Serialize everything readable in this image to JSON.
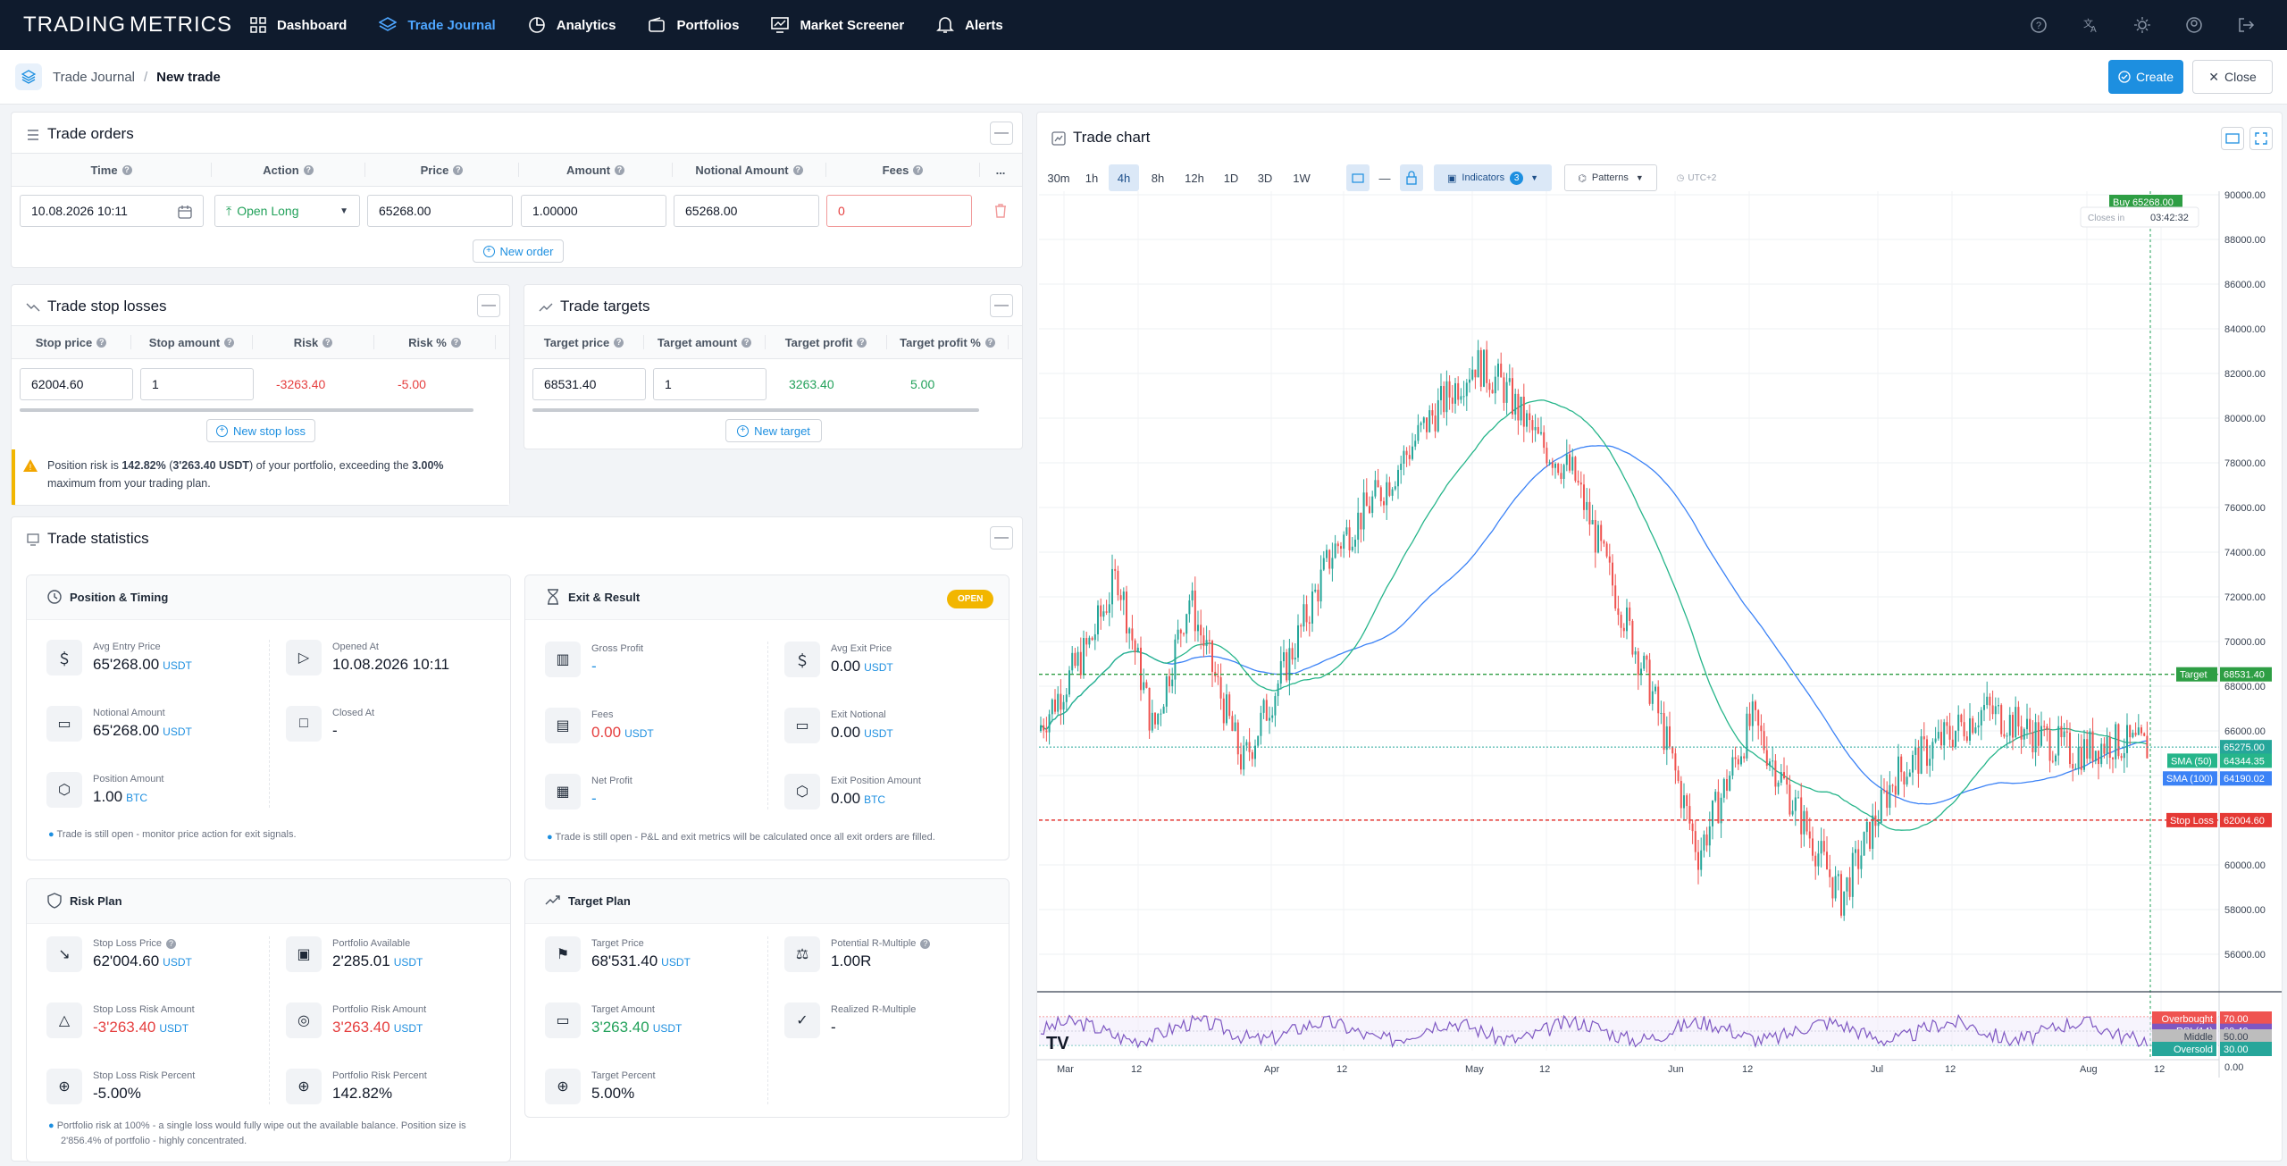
{
  "brand": {
    "name_left": "TRADING",
    "name_right": "METRICS"
  },
  "nav": {
    "items": [
      {
        "label": "Dashboard",
        "icon": "grid-icon"
      },
      {
        "label": "Trade Journal",
        "icon": "layers-icon",
        "active": true
      },
      {
        "label": "Analytics",
        "icon": "pie-icon"
      },
      {
        "label": "Portfolios",
        "icon": "wallet-icon"
      },
      {
        "label": "Market Screener",
        "icon": "screener-icon"
      },
      {
        "label": "Alerts",
        "icon": "bell-icon"
      }
    ],
    "right_icons": [
      "help-icon",
      "translate-icon",
      "theme-icon",
      "account-icon",
      "logout-icon"
    ]
  },
  "breadcrumb": {
    "parent": "Trade Journal",
    "current": "New trade",
    "separator": "/"
  },
  "actions": {
    "create": "Create",
    "close": "Close"
  },
  "orders": {
    "title": "Trade orders",
    "columns": [
      "Time",
      "Action",
      "Price",
      "Amount",
      "Notional Amount",
      "Fees"
    ],
    "row": {
      "time": "10.08.2026 10:11",
      "action": "Open Long",
      "price": "65268.00",
      "amount": "1.00000",
      "notional": "65268.00",
      "fees": "0"
    },
    "more": "...",
    "add": "New order"
  },
  "stops": {
    "title": "Trade stop losses",
    "columns": [
      "Stop price",
      "Stop amount",
      "Risk",
      "Risk %"
    ],
    "row": {
      "price": "62004.60",
      "amount": "1",
      "risk": "-3263.40",
      "risk_pct": "-5.00"
    },
    "add": "New stop loss"
  },
  "targets": {
    "title": "Trade targets",
    "columns": [
      "Target price",
      "Target amount",
      "Target profit",
      "Target profit %"
    ],
    "row": {
      "price": "68531.40",
      "amount": "1",
      "profit": "3263.40",
      "profit_pct": "5.00"
    },
    "add": "New target"
  },
  "warning": {
    "prefix": "Position risk is ",
    "pct": "142.82%",
    "mid": " (",
    "amt": "3'263.40 USDT",
    "mid2": ") of your portfolio, exceeding the ",
    "max": "3.00%",
    "line2": "maximum from your trading plan."
  },
  "stats": {
    "title": "Trade statistics",
    "position": {
      "title": "Position & Timing",
      "avg_entry": {
        "label": "Avg Entry Price",
        "value": "65'268.00",
        "unit": "USDT"
      },
      "opened": {
        "label": "Opened At",
        "value": "10.08.2026 10:11"
      },
      "notional": {
        "label": "Notional Amount",
        "value": "65'268.00",
        "unit": "USDT"
      },
      "closed": {
        "label": "Closed At",
        "value": "-"
      },
      "amount": {
        "label": "Position Amount",
        "value": "1.00",
        "unit": "BTC"
      },
      "note": "Trade is still open - monitor price action for exit signals."
    },
    "exit": {
      "title": "Exit & Result",
      "badge": "OPEN",
      "gross": {
        "label": "Gross Profit",
        "value": "-"
      },
      "avg_exit": {
        "label": "Avg Exit Price",
        "value": "0.00",
        "unit": "USDT"
      },
      "fees": {
        "label": "Fees",
        "value": "0.00",
        "unit": "USDT"
      },
      "exit_notional": {
        "label": "Exit Notional",
        "value": "0.00",
        "unit": "USDT"
      },
      "net": {
        "label": "Net Profit",
        "value": "-"
      },
      "exit_amount": {
        "label": "Exit Position Amount",
        "value": "0.00",
        "unit": "BTC"
      },
      "note": "Trade is still open - P&L and exit metrics will be calculated once all exit orders are filled."
    },
    "risk": {
      "title": "Risk Plan",
      "sl_price": {
        "label": "Stop Loss Price",
        "value": "62'004.60",
        "unit": "USDT"
      },
      "port_avail": {
        "label": "Portfolio Available",
        "value": "2'285.01",
        "unit": "USDT"
      },
      "sl_amount": {
        "label": "Stop Loss Risk Amount",
        "value": "-3'263.40",
        "unit": "USDT"
      },
      "port_risk": {
        "label": "Portfolio Risk Amount",
        "value": "3'263.40",
        "unit": "USDT"
      },
      "sl_pct": {
        "label": "Stop Loss Risk Percent",
        "value": "-5.00%"
      },
      "port_pct": {
        "label": "Portfolio Risk Percent",
        "value": "142.82%"
      },
      "note1": "Portfolio risk at 100% - a single loss would fully wipe out the available balance. Position size is",
      "note2": "2'856.4% of portfolio - highly concentrated."
    },
    "target": {
      "title": "Target Plan",
      "price": {
        "label": "Target Price",
        "value": "68'531.40",
        "unit": "USDT"
      },
      "r_multiple": {
        "label": "Potential R-Multiple",
        "value": "1.00R"
      },
      "amount": {
        "label": "Target Amount",
        "value": "3'263.40",
        "unit": "USDT"
      },
      "realized": {
        "label": "Realized R-Multiple",
        "value": "-"
      },
      "pct": {
        "label": "Target Percent",
        "value": "5.00%"
      }
    }
  },
  "chart": {
    "title": "Trade chart",
    "timeframes": [
      "30m",
      "1h",
      "4h",
      "8h",
      "12h",
      "1D",
      "3D",
      "1W"
    ],
    "active_tf": "4h",
    "indicators_label": "Indicators",
    "indicators_count": "3",
    "patterns_label": "Patterns",
    "timezone": "UTC+2",
    "buy_label": "Buy 65268.00",
    "countdown_label": "Closes in",
    "countdown": "03:42:32",
    "price_ticks": [
      "90000.00",
      "88000.00",
      "86000.00",
      "84000.00",
      "82000.00",
      "80000.00",
      "78000.00",
      "76000.00",
      "74000.00",
      "72000.00",
      "70000.00",
      "68000.00",
      "66000.00",
      "64000.00",
      "62000.00",
      "60000.00",
      "58000.00",
      "56000.00"
    ],
    "rsi_ticks": [
      "0.00"
    ],
    "date_ticks": [
      "Mar",
      "12",
      "Apr",
      "12",
      "May",
      "12",
      "Jun",
      "12",
      "Jul",
      "12",
      "Aug",
      "12"
    ],
    "lines": {
      "target": {
        "label": "Target",
        "value": "68531.40",
        "color": "#2e9e44"
      },
      "stop": {
        "label": "Stop Loss",
        "value": "62004.60",
        "color": "#e53935"
      },
      "last": {
        "value": "65275.00",
        "color": "#26a69a"
      },
      "sma50": {
        "label": "SMA (50)",
        "value": "64344.35",
        "color": "#26b58a"
      },
      "sma100": {
        "label": "SMA (100)",
        "value": "64190.02",
        "color": "#3b82f6"
      }
    },
    "rsi": {
      "overbought": {
        "label": "Overbought",
        "value": "70.00"
      },
      "rsi": {
        "label": "RSI (14)",
        "value": "60.40"
      },
      "middle": {
        "label": "Middle",
        "value": "50.00"
      },
      "oversold": {
        "label": "Oversold",
        "value": "30.00"
      }
    },
    "logo": "TV"
  }
}
